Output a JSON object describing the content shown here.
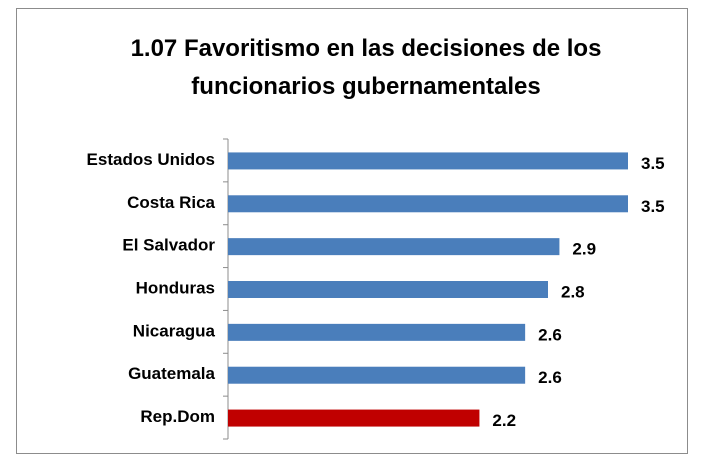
{
  "chart_data": {
    "type": "bar",
    "orientation": "horizontal",
    "title": "1.07 Favoritismo en las decisiones de los funcionarios gubernamentales",
    "categories": [
      "Estados Unidos",
      "Costa Rica",
      "El Salvador",
      "Honduras",
      "Nicaragua",
      "Guatemala",
      "Rep.Dom"
    ],
    "values": [
      3.5,
      3.5,
      2.9,
      2.8,
      2.6,
      2.6,
      2.2
    ],
    "colors": [
      "#4a7ebb",
      "#4a7ebb",
      "#4a7ebb",
      "#4a7ebb",
      "#4a7ebb",
      "#4a7ebb",
      "#c00000"
    ]
  }
}
